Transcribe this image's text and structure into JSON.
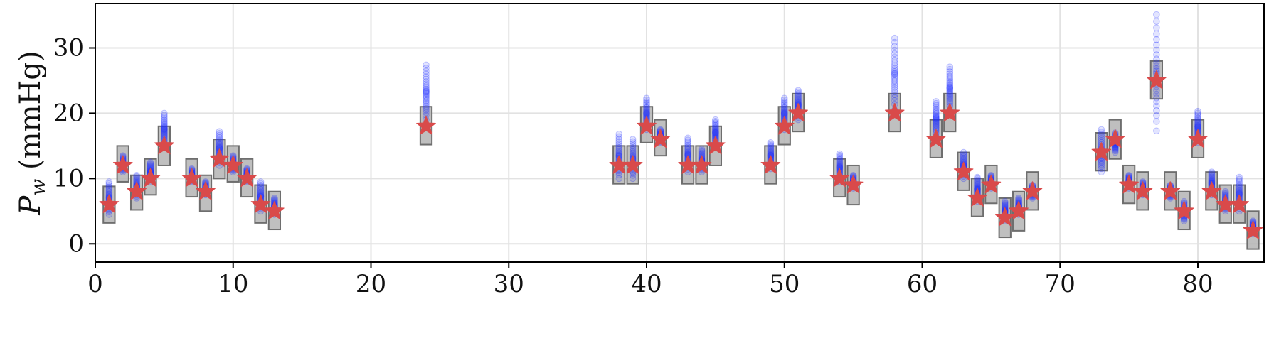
{
  "chart_data": {
    "type": "scatter",
    "title": "",
    "xlabel": "",
    "ylabel": {
      "symbol": "P",
      "subscript": "w",
      "unit": "(mmHg)"
    },
    "xlim": [
      0,
      84.8
    ],
    "ylim": [
      -2.8,
      36.8
    ],
    "xticks": [
      "0",
      "10",
      "20",
      "30",
      "40",
      "50",
      "60",
      "70",
      "80"
    ],
    "yticks": [
      "0",
      "10",
      "20",
      "30"
    ],
    "grid": true,
    "colors": {
      "star": "#d94a4a",
      "samples": "#1f2fff",
      "box_fill": "#b4b4b4",
      "box_edge": "#6e6e6e",
      "grid": "#e2e2e2"
    },
    "series": [
      {
        "role": "true value (star markers)",
        "points": [
          [
            1,
            6
          ],
          [
            2,
            12
          ],
          [
            3,
            8
          ],
          [
            4,
            10
          ],
          [
            5,
            15
          ],
          [
            7,
            10
          ],
          [
            8,
            8
          ],
          [
            9,
            13
          ],
          [
            10,
            12
          ],
          [
            11,
            10
          ],
          [
            12,
            6
          ],
          [
            13,
            5
          ],
          [
            24,
            18
          ],
          [
            38,
            12
          ],
          [
            39,
            12
          ],
          [
            40,
            18
          ],
          [
            41,
            16
          ],
          [
            43,
            12
          ],
          [
            44,
            12
          ],
          [
            45,
            15
          ],
          [
            49,
            12
          ],
          [
            50,
            18
          ],
          [
            51,
            20
          ],
          [
            54,
            10
          ],
          [
            55,
            9
          ],
          [
            58,
            20
          ],
          [
            61,
            16
          ],
          [
            62,
            20
          ],
          [
            63,
            11
          ],
          [
            64,
            7
          ],
          [
            65,
            9
          ],
          [
            66,
            4
          ],
          [
            67,
            5
          ],
          [
            68,
            8
          ],
          [
            73,
            14
          ],
          [
            74,
            16
          ],
          [
            75,
            9
          ],
          [
            76,
            8
          ],
          [
            77,
            25
          ],
          [
            78,
            8
          ],
          [
            79,
            5
          ],
          [
            80,
            16
          ],
          [
            81,
            8
          ],
          [
            82,
            6
          ],
          [
            83,
            6
          ],
          [
            84,
            2
          ]
        ]
      },
      {
        "role": "estimate spread (grey boxes)",
        "boxes": [
          {
            "x": 1,
            "low": 3.2,
            "high": 8.8
          },
          {
            "x": 2,
            "low": 9.5,
            "high": 15
          },
          {
            "x": 3,
            "low": 5.2,
            "high": 10.5
          },
          {
            "x": 4,
            "low": 7.5,
            "high": 13
          },
          {
            "x": 5,
            "low": 12,
            "high": 18
          },
          {
            "x": 7,
            "low": 7.2,
            "high": 13
          },
          {
            "x": 8,
            "low": 5,
            "high": 10.5
          },
          {
            "x": 9,
            "low": 10,
            "high": 16
          },
          {
            "x": 10,
            "low": 9.5,
            "high": 15
          },
          {
            "x": 11,
            "low": 7.2,
            "high": 13
          },
          {
            "x": 12,
            "low": 3.2,
            "high": 9
          },
          {
            "x": 13,
            "low": 2.2,
            "high": 8
          },
          {
            "x": 24,
            "low": 15.2,
            "high": 21
          },
          {
            "x": 38,
            "low": 9.2,
            "high": 15
          },
          {
            "x": 39,
            "low": 9.2,
            "high": 15
          },
          {
            "x": 40,
            "low": 15.5,
            "high": 21
          },
          {
            "x": 41,
            "low": 13.5,
            "high": 19
          },
          {
            "x": 43,
            "low": 9.2,
            "high": 15
          },
          {
            "x": 44,
            "low": 9.2,
            "high": 15
          },
          {
            "x": 45,
            "low": 12,
            "high": 18
          },
          {
            "x": 49,
            "low": 9.2,
            "high": 15
          },
          {
            "x": 50,
            "low": 15.2,
            "high": 21
          },
          {
            "x": 51,
            "low": 17.2,
            "high": 23
          },
          {
            "x": 54,
            "low": 7.2,
            "high": 13
          },
          {
            "x": 55,
            "low": 6,
            "high": 12
          },
          {
            "x": 58,
            "low": 17.2,
            "high": 23
          },
          {
            "x": 61,
            "low": 13.2,
            "high": 19
          },
          {
            "x": 62,
            "low": 17.2,
            "high": 23
          },
          {
            "x": 63,
            "low": 8.2,
            "high": 14
          },
          {
            "x": 64,
            "low": 4.2,
            "high": 10
          },
          {
            "x": 65,
            "low": 6.2,
            "high": 12
          },
          {
            "x": 66,
            "low": 1,
            "high": 7
          },
          {
            "x": 67,
            "low": 2,
            "high": 8
          },
          {
            "x": 68,
            "low": 5.2,
            "high": 11
          },
          {
            "x": 73,
            "low": 11.2,
            "high": 17
          },
          {
            "x": 74,
            "low": 13,
            "high": 19
          },
          {
            "x": 75,
            "low": 6.2,
            "high": 12
          },
          {
            "x": 76,
            "low": 5.2,
            "high": 11
          },
          {
            "x": 77,
            "low": 22.2,
            "high": 28
          },
          {
            "x": 78,
            "low": 5.2,
            "high": 11
          },
          {
            "x": 79,
            "low": 2.2,
            "high": 8
          },
          {
            "x": 80,
            "low": 13.2,
            "high": 19
          },
          {
            "x": 81,
            "low": 5.2,
            "high": 11
          },
          {
            "x": 82,
            "low": 3.2,
            "high": 9
          },
          {
            "x": 83,
            "low": 3.2,
            "high": 9
          },
          {
            "x": 84,
            "low": -0.8,
            "high": 5
          }
        ]
      },
      {
        "role": "sampled estimates (translucent blue dots)",
        "clusters": [
          {
            "x": 1,
            "low": 4.5,
            "high": 9.5
          },
          {
            "x": 2,
            "low": 11,
            "high": 13.5
          },
          {
            "x": 3,
            "low": 7,
            "high": 10.5
          },
          {
            "x": 4,
            "low": 9.5,
            "high": 12.5
          },
          {
            "x": 5,
            "low": 15,
            "high": 20
          },
          {
            "x": 7,
            "low": 9.5,
            "high": 11.5
          },
          {
            "x": 8,
            "low": 7.5,
            "high": 9.5
          },
          {
            "x": 9,
            "low": 12,
            "high": 17.2
          },
          {
            "x": 10,
            "low": 11,
            "high": 13.5
          },
          {
            "x": 11,
            "low": 9.5,
            "high": 11.5
          },
          {
            "x": 12,
            "low": 5,
            "high": 9.5
          },
          {
            "x": 13,
            "low": 4.5,
            "high": 7
          },
          {
            "x": 24,
            "low": 19,
            "high": 27.4
          },
          {
            "x": 38,
            "low": 10,
            "high": 16.8
          },
          {
            "x": 39,
            "low": 10,
            "high": 16
          },
          {
            "x": 40,
            "low": 17.5,
            "high": 22.3
          },
          {
            "x": 41,
            "low": 15.5,
            "high": 17.5
          },
          {
            "x": 43,
            "low": 11,
            "high": 16.2
          },
          {
            "x": 44,
            "low": 11,
            "high": 14.5
          },
          {
            "x": 45,
            "low": 15,
            "high": 19
          },
          {
            "x": 49,
            "low": 11.5,
            "high": 15.5
          },
          {
            "x": 50,
            "low": 17.5,
            "high": 22.3
          },
          {
            "x": 51,
            "low": 19,
            "high": 23.5
          },
          {
            "x": 54,
            "low": 9.5,
            "high": 13.8
          },
          {
            "x": 55,
            "low": 8.5,
            "high": 10.5
          },
          {
            "x": 58,
            "low": 20.5,
            "high": 31.5
          },
          {
            "x": 61,
            "low": 16.5,
            "high": 21.8
          },
          {
            "x": 62,
            "low": 20.5,
            "high": 27.1
          },
          {
            "x": 63,
            "low": 10,
            "high": 14
          },
          {
            "x": 64,
            "low": 6.5,
            "high": 10.2
          },
          {
            "x": 65,
            "low": 8.5,
            "high": 10.5
          },
          {
            "x": 66,
            "low": 3.5,
            "high": 6.5
          },
          {
            "x": 67,
            "low": 4.5,
            "high": 7
          },
          {
            "x": 68,
            "low": 7,
            "high": 9
          },
          {
            "x": 73,
            "low": 11,
            "high": 17.5
          },
          {
            "x": 74,
            "low": 14,
            "high": 17
          },
          {
            "x": 75,
            "low": 8.5,
            "high": 10.5
          },
          {
            "x": 76,
            "low": 7.5,
            "high": 9.5
          },
          {
            "x": 77,
            "low": 17.3,
            "high": 35.1
          },
          {
            "x": 78,
            "low": 7,
            "high": 9
          },
          {
            "x": 79,
            "low": 3.5,
            "high": 6.5
          },
          {
            "x": 80,
            "low": 15.5,
            "high": 20.3
          },
          {
            "x": 81,
            "low": 7.5,
            "high": 11
          },
          {
            "x": 82,
            "low": 5,
            "high": 8
          },
          {
            "x": 83,
            "low": 5,
            "high": 10.2
          },
          {
            "x": 84,
            "low": 1.5,
            "high": 3.5
          }
        ]
      }
    ]
  }
}
